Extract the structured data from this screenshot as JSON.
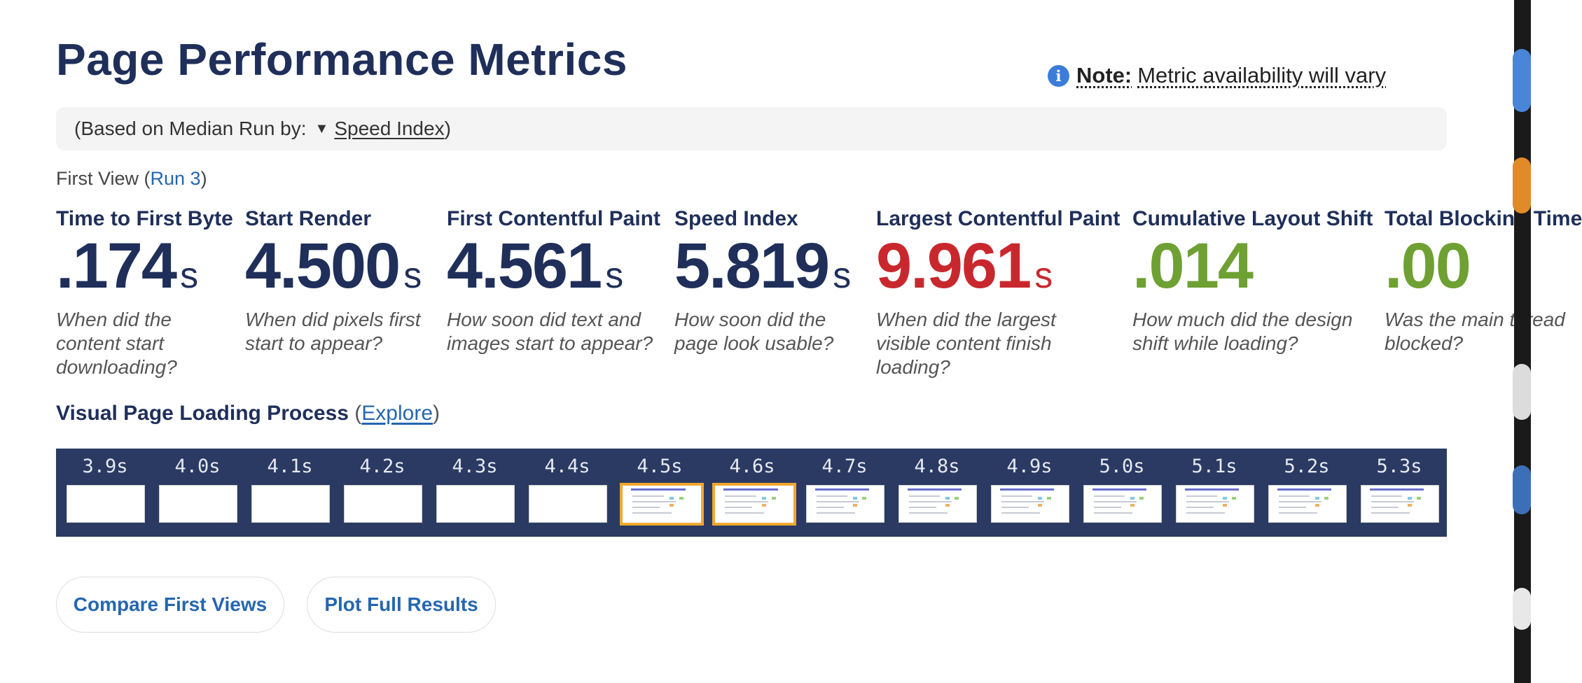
{
  "page": {
    "title": "Page Performance Metrics",
    "note_label": "Note:",
    "note_text": "Metric availability will vary",
    "median_prefix": "(Based on Median Run by:",
    "median_metric": "Speed Index",
    "median_suffix": ")",
    "first_view_prefix": "First View (",
    "first_view_run": "Run 3",
    "first_view_suffix": ")"
  },
  "metrics": [
    {
      "label": "Time to First Byte",
      "value": ".174",
      "unit": "s",
      "color": "#1f2f5a",
      "desc": "When did the content start downloading?"
    },
    {
      "label": "Start Render",
      "value": "4.500",
      "unit": "s",
      "color": "#1f2f5a",
      "desc": "When did pixels first start to appear?"
    },
    {
      "label": "First Contentful Paint",
      "value": "4.561",
      "unit": "s",
      "color": "#1f2f5a",
      "desc": "How soon did text and images start to appear?"
    },
    {
      "label": "Speed Index",
      "value": "5.819",
      "unit": "s",
      "color": "#1f2f5a",
      "desc": "How soon did the page look usable?"
    },
    {
      "label": "Largest Contentful Paint",
      "value": "9.961",
      "unit": "s",
      "color": "#c8282d",
      "desc": "When did the largest visible content finish loading?"
    },
    {
      "label": "Cumulative Layout Shift",
      "value": ".014",
      "unit": "",
      "color": "#6fa033",
      "desc": "How much did the design shift while loading?"
    },
    {
      "label": "Total Blocking Time",
      "value": ".00",
      "unit": "",
      "color": "#6fa033",
      "desc": "Was the main thread blocked?"
    }
  ],
  "visual": {
    "title": "Visual Page Loading Process",
    "open_paren": "(",
    "explore": "Explore",
    "close_paren": ")",
    "frames": [
      {
        "time": "3.9s",
        "state": "blank"
      },
      {
        "time": "4.0s",
        "state": "blank"
      },
      {
        "time": "4.1s",
        "state": "blank"
      },
      {
        "time": "4.2s",
        "state": "blank"
      },
      {
        "time": "4.3s",
        "state": "blank"
      },
      {
        "time": "4.4s",
        "state": "blank"
      },
      {
        "time": "4.5s",
        "state": "changed"
      },
      {
        "time": "4.6s",
        "state": "changed"
      },
      {
        "time": "4.7s",
        "state": "content"
      },
      {
        "time": "4.8s",
        "state": "content"
      },
      {
        "time": "4.9s",
        "state": "content"
      },
      {
        "time": "5.0s",
        "state": "content"
      },
      {
        "time": "5.1s",
        "state": "content"
      },
      {
        "time": "5.2s",
        "state": "content"
      },
      {
        "time": "5.3s",
        "state": "content"
      }
    ]
  },
  "buttons": {
    "compare": "Compare First Views",
    "plot": "Plot Full Results"
  },
  "colors": {
    "navy": "#1f2f5a",
    "red": "#c8282d",
    "green": "#6fa033",
    "link": "#2566b0",
    "filmstrip_bg": "#2a3a63",
    "highlight": "#f0a830"
  }
}
